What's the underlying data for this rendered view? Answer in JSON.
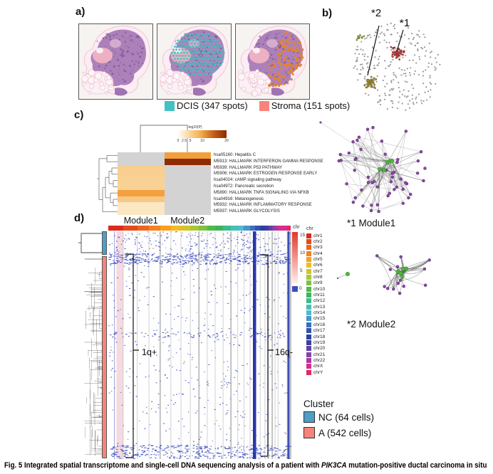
{
  "figure": {
    "caption_prefix": "Fig. 5 Integrated spatial transcriptome and single-cell DNA sequencing analysis of a patient with ",
    "caption_gene": "PIK3CA",
    "caption_suffix": " mutation-positive ductal carcinoma in situ"
  },
  "panel_a": {
    "label": "a)",
    "legend": [
      {
        "label": "DCIS (347 spots)",
        "color": "#42c2c0",
        "spots": 347
      },
      {
        "label": "Stroma (151 spots)",
        "color": "#f9837a",
        "spots": 151
      }
    ]
  },
  "panel_b": {
    "label": "b)",
    "callouts": [
      {
        "text": "*2"
      },
      {
        "text": "*1"
      }
    ]
  },
  "panel_c": {
    "label": "c)",
    "colorbar": {
      "title": "-log10(P)",
      "ticks": [
        "0",
        "2.5",
        "5",
        "10",
        "20"
      ]
    },
    "columns": [
      "Module1",
      "Module2"
    ],
    "rows": [
      {
        "label": "hsa05160: Hepatitis C",
        "colors": [
          "#d3d3d3",
          "#f2a03b"
        ]
      },
      {
        "label": "M5913: HALLMARK INTERFERON GAMMA RESPONSE",
        "colors": [
          "#d3d3d3",
          "#8e2c03"
        ]
      },
      {
        "label": "M5939: HALLMARK P53 PATHWAY",
        "colors": [
          "#f8cf8e",
          "#d3d3d3"
        ]
      },
      {
        "label": "M5906: HALLMARK ESTROGEN RESPONSE EARLY",
        "colors": [
          "#f8cf8e",
          "#d3d3d3"
        ]
      },
      {
        "label": "hsa04024: cAMP signaling pathway",
        "colors": [
          "#f8d294",
          "#d3d3d3"
        ]
      },
      {
        "label": "hsa04972: Pancreatic secretion",
        "colors": [
          "#f8d294",
          "#d3d3d3"
        ]
      },
      {
        "label": "M5890: HALLMARK TNFA SIGNALING VIA NFKB",
        "colors": [
          "#f69f3e",
          "#d3d3d3"
        ]
      },
      {
        "label": "hsa04916: Melanogenesis",
        "colors": [
          "#f6c887",
          "#d3d3d3"
        ]
      },
      {
        "label": "M5932: HALLMARK INFLAMMATORY RESPONSE",
        "colors": [
          "#fbe7c2",
          "#d3d3d3"
        ]
      },
      {
        "label": "M5937: HALLMARK GLYCOLYSIS",
        "colors": [
          "#fbe7c2",
          "#d3d3d3"
        ]
      }
    ]
  },
  "panel_d": {
    "label": "d)",
    "chr_bar_label": "chr",
    "annotations": [
      {
        "text": "1q+"
      },
      {
        "text": "16q-"
      }
    ],
    "value_scale": {
      "ticks": [
        "15",
        "10",
        "5"
      ],
      "zero": "0"
    },
    "chr_legend_title": "chr",
    "chromosomes": [
      {
        "name": "chr1",
        "color": "#dc2a1e",
        "size": 249
      },
      {
        "name": "chr2",
        "color": "#e44a1e",
        "size": 243
      },
      {
        "name": "chr3",
        "color": "#ec661e",
        "size": 198
      },
      {
        "name": "chr4",
        "color": "#f3821f",
        "size": 190
      },
      {
        "name": "chr5",
        "color": "#f8a01f",
        "size": 182
      },
      {
        "name": "chr6",
        "color": "#f0bc20",
        "size": 171
      },
      {
        "name": "chr7",
        "color": "#d1c52a",
        "size": 159
      },
      {
        "name": "chr8",
        "color": "#a8c739",
        "size": 146
      },
      {
        "name": "chr9",
        "color": "#7cc242",
        "size": 141
      },
      {
        "name": "chr10",
        "color": "#52b848",
        "size": 134
      },
      {
        "name": "chr11",
        "color": "#3fb35c",
        "size": 135
      },
      {
        "name": "chr12",
        "color": "#3fba8c",
        "size": 133
      },
      {
        "name": "chr13",
        "color": "#45c0b4",
        "size": 115
      },
      {
        "name": "chr14",
        "color": "#52b8d0",
        "size": 107
      },
      {
        "name": "chr15",
        "color": "#4795c9",
        "size": 102
      },
      {
        "name": "chr16",
        "color": "#3b70bb",
        "size": 90
      },
      {
        "name": "chr17",
        "color": "#3253ae",
        "size": 83
      },
      {
        "name": "chr18",
        "color": "#2e419f",
        "size": 80
      },
      {
        "name": "chr19",
        "color": "#3f3e9d",
        "size": 59
      },
      {
        "name": "chr20",
        "color": "#5f42a4",
        "size": 64
      },
      {
        "name": "chr21",
        "color": "#8343a7",
        "size": 48
      },
      {
        "name": "chr22",
        "color": "#ab3a9e",
        "size": 51
      },
      {
        "name": "chrX",
        "color": "#d62e8e",
        "size": 155
      },
      {
        "name": "chrY",
        "color": "#e62560",
        "size": 59
      }
    ],
    "cluster_legend": {
      "title": "Cluster",
      "items": [
        {
          "label": "NC (64 cells)",
          "color": "#4e9fc7",
          "cells": 64
        },
        {
          "label": "A (542 cells)",
          "color": "#f8837b",
          "cells": 542
        }
      ]
    }
  },
  "modules": [
    {
      "label": "*1 Module1"
    },
    {
      "label": "*2 Module2"
    }
  ],
  "palette": {
    "heat_dot_blue": "#3b4cc0",
    "band_pink": "#f7d9e0",
    "band_16q_blue": "#2936a8",
    "band_chrY_blue": "#3c4fb5",
    "net_purple": "#8748a0",
    "net_green": "#4db53c",
    "net_red": "#a83232",
    "net_olive": "#8a7a28",
    "net_gray": "#8f8f8f"
  }
}
